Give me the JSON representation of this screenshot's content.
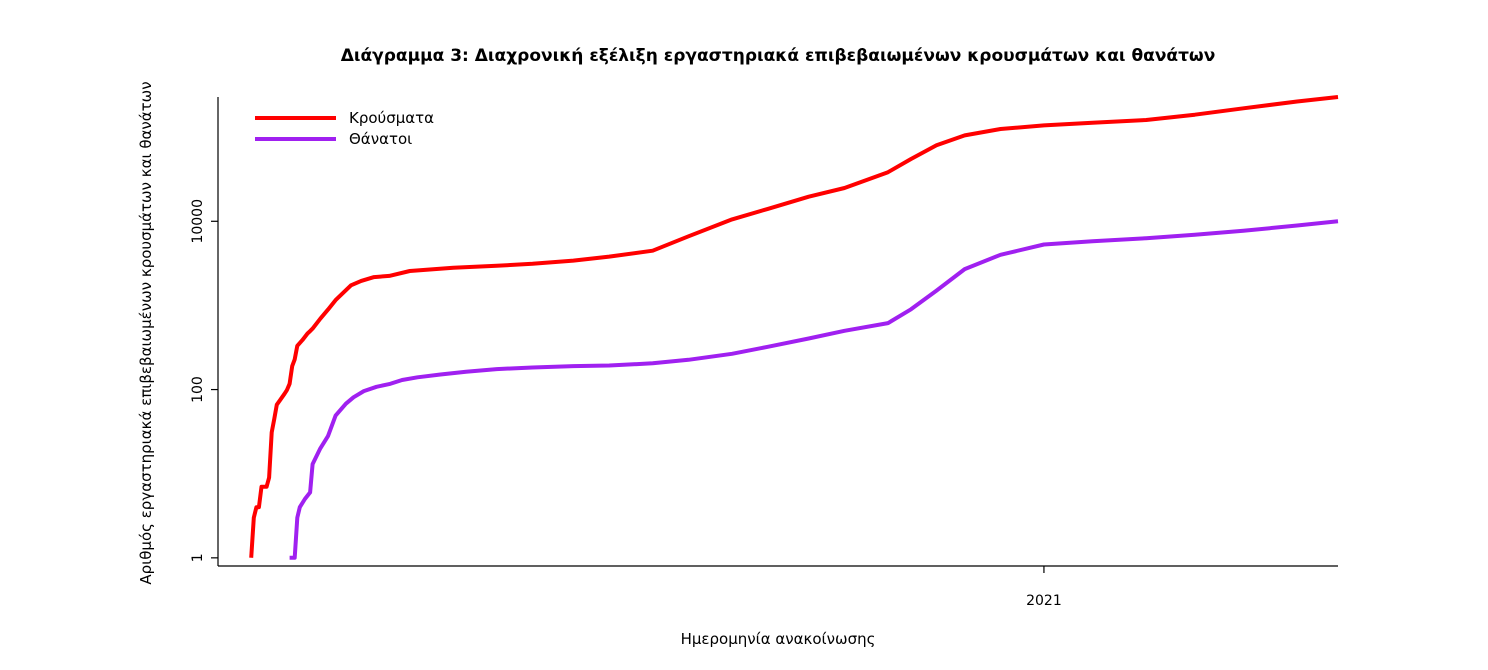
{
  "chart_data": {
    "type": "line",
    "title": "Διάγραμμα 3: Διαχρονική εξέλιξη εργαστηριακά επιβεβαιωμένων κρουσμάτων και θανάτων",
    "xlabel": "Ημερομηνία ανακοίνωσης",
    "ylabel": "Αριθμός εργαστηριακά επιβεβαιωμένων κρουσμάτων και θανάτων",
    "y_scale": "log",
    "ylim": [
      0.8,
      300000
    ],
    "y_ticks": [
      1,
      100,
      10000
    ],
    "y_tick_labels": [
      "1",
      "100",
      "10000"
    ],
    "x_range": [
      "2020-02-13",
      "2021-04-26"
    ],
    "x_ticks": [
      "2021-01-01"
    ],
    "x_tick_labels": [
      "2021"
    ],
    "grid": false,
    "legend": "top-left",
    "series": [
      {
        "name": "Κρούσματα",
        "color": "#ff0000",
        "points": [
          [
            "2020-02-26",
            1
          ],
          [
            "2020-02-27",
            3
          ],
          [
            "2020-02-28",
            4
          ],
          [
            "2020-02-29",
            4
          ],
          [
            "2020-03-01",
            7
          ],
          [
            "2020-03-03",
            7
          ],
          [
            "2020-03-04",
            9
          ],
          [
            "2020-03-05",
            31
          ],
          [
            "2020-03-06",
            45
          ],
          [
            "2020-03-07",
            66
          ],
          [
            "2020-03-08",
            73
          ],
          [
            "2020-03-10",
            89
          ],
          [
            "2020-03-11",
            99
          ],
          [
            "2020-03-12",
            117
          ],
          [
            "2020-03-13",
            190
          ],
          [
            "2020-03-14",
            228
          ],
          [
            "2020-03-15",
            331
          ],
          [
            "2020-03-17",
            387
          ],
          [
            "2020-03-19",
            464
          ],
          [
            "2020-03-20",
            495
          ],
          [
            "2020-03-21",
            530
          ],
          [
            "2020-03-24",
            695
          ],
          [
            "2020-03-27",
            892
          ],
          [
            "2020-03-30",
            1156
          ],
          [
            "2020-04-02",
            1415
          ],
          [
            "2020-04-05",
            1735
          ],
          [
            "2020-04-09",
            1955
          ],
          [
            "2020-04-14",
            2170
          ],
          [
            "2020-04-20",
            2245
          ],
          [
            "2020-04-28",
            2566
          ],
          [
            "2020-05-15",
            2810
          ],
          [
            "2020-06-01",
            2960
          ],
          [
            "2020-06-15",
            3121
          ],
          [
            "2020-07-01",
            3409
          ],
          [
            "2020-07-15",
            3803
          ],
          [
            "2020-08-01",
            4477
          ],
          [
            "2020-08-15",
            6632
          ],
          [
            "2020-09-01",
            10524
          ],
          [
            "2020-09-15",
            14041
          ],
          [
            "2020-10-01",
            19613
          ],
          [
            "2020-10-15",
            24866
          ],
          [
            "2020-11-01",
            38297
          ],
          [
            "2020-11-10",
            55000
          ],
          [
            "2020-11-20",
            80000
          ],
          [
            "2020-12-01",
            105000
          ],
          [
            "2020-12-15",
            125000
          ],
          [
            "2021-01-01",
            138000
          ],
          [
            "2021-01-20",
            148000
          ],
          [
            "2021-02-10",
            160000
          ],
          [
            "2021-03-01",
            185000
          ],
          [
            "2021-03-20",
            220000
          ],
          [
            "2021-04-10",
            265000
          ],
          [
            "2021-04-26",
            300000
          ]
        ]
      },
      {
        "name": "Θάνατοι",
        "color": "#a020f0",
        "points": [
          [
            "2020-03-12",
            1
          ],
          [
            "2020-03-14",
            1
          ],
          [
            "2020-03-15",
            3
          ],
          [
            "2020-03-16",
            4
          ],
          [
            "2020-03-18",
            5
          ],
          [
            "2020-03-20",
            6
          ],
          [
            "2020-03-21",
            13
          ],
          [
            "2020-03-24",
            20
          ],
          [
            "2020-03-27",
            28
          ],
          [
            "2020-03-30",
            49
          ],
          [
            "2020-04-03",
            68
          ],
          [
            "2020-04-06",
            81
          ],
          [
            "2020-04-10",
            96
          ],
          [
            "2020-04-15",
            108
          ],
          [
            "2020-04-20",
            116
          ],
          [
            "2020-04-25",
            130
          ],
          [
            "2020-05-01",
            140
          ],
          [
            "2020-05-10",
            151
          ],
          [
            "2020-05-20",
            163
          ],
          [
            "2020-06-01",
            175
          ],
          [
            "2020-06-15",
            183
          ],
          [
            "2020-07-01",
            190
          ],
          [
            "2020-07-15",
            193
          ],
          [
            "2020-08-01",
            205
          ],
          [
            "2020-08-15",
            226
          ],
          [
            "2020-09-01",
            266
          ],
          [
            "2020-09-15",
            322
          ],
          [
            "2020-10-01",
            405
          ],
          [
            "2020-10-15",
            499
          ],
          [
            "2020-11-01",
            617
          ],
          [
            "2020-11-10",
            900
          ],
          [
            "2020-11-20",
            1500
          ],
          [
            "2020-12-01",
            2700
          ],
          [
            "2020-12-15",
            4000
          ],
          [
            "2021-01-01",
            5300
          ],
          [
            "2021-01-20",
            5800
          ],
          [
            "2021-02-10",
            6300
          ],
          [
            "2021-03-01",
            6900
          ],
          [
            "2021-03-20",
            7700
          ],
          [
            "2021-04-10",
            8900
          ],
          [
            "2021-04-26",
            10000
          ]
        ]
      }
    ]
  }
}
